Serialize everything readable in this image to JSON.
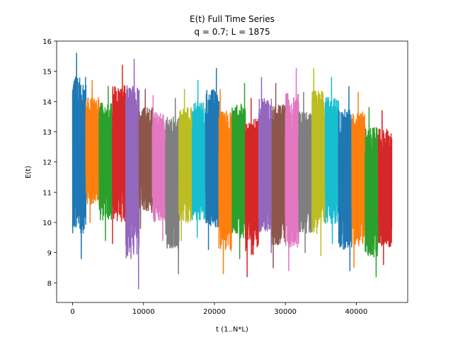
{
  "chart_data": {
    "type": "line",
    "title": "E(t) Full Time Series",
    "subtitle": "q = 0.7; L = 1875",
    "xlabel": "t (1..N*L)",
    "ylabel": "E(t)",
    "xlim": [
      -2250,
      47250
    ],
    "ylim": [
      7.35,
      16.0
    ],
    "xticks": [
      0,
      10000,
      20000,
      30000,
      40000
    ],
    "yticks": [
      8,
      9,
      10,
      11,
      12,
      13,
      14,
      15,
      16
    ],
    "grid": false,
    "legend": "none",
    "segment_length": 1875,
    "colors": [
      "#1f77b4",
      "#ff7f0e",
      "#2ca02c",
      "#d62728",
      "#9467bd",
      "#8c564b",
      "#e377c2",
      "#7f7f7f",
      "#bcbd22",
      "#17becf"
    ],
    "series": [
      {
        "x_start": 0,
        "x_end": 1875,
        "min": 8.8,
        "max": 15.6,
        "mean": 12.4
      },
      {
        "x_start": 1875,
        "x_end": 3750,
        "min": 10.0,
        "max": 14.7,
        "mean": 12.3
      },
      {
        "x_start": 3750,
        "x_end": 5625,
        "min": 9.4,
        "max": 14.5,
        "mean": 12.2
      },
      {
        "x_start": 5625,
        "x_end": 7500,
        "min": 9.3,
        "max": 15.2,
        "mean": 12.4
      },
      {
        "x_start": 7500,
        "x_end": 9375,
        "min": 7.8,
        "max": 15.4,
        "mean": 11.8
      },
      {
        "x_start": 9375,
        "x_end": 11250,
        "min": 9.8,
        "max": 14.4,
        "mean": 12.0
      },
      {
        "x_start": 11250,
        "x_end": 13125,
        "min": 9.4,
        "max": 14.2,
        "mean": 11.9
      },
      {
        "x_start": 13125,
        "x_end": 15000,
        "min": 8.3,
        "max": 14.1,
        "mean": 11.7
      },
      {
        "x_start": 15000,
        "x_end": 16875,
        "min": 9.4,
        "max": 14.4,
        "mean": 11.9
      },
      {
        "x_start": 16875,
        "x_end": 18750,
        "min": 9.5,
        "max": 14.7,
        "mean": 12.0
      },
      {
        "x_start": 18750,
        "x_end": 20625,
        "min": 9.1,
        "max": 15.1,
        "mean": 12.1
      },
      {
        "x_start": 20625,
        "x_end": 22500,
        "min": 8.3,
        "max": 14.4,
        "mean": 11.4
      },
      {
        "x_start": 22500,
        "x_end": 24375,
        "min": 8.8,
        "max": 14.6,
        "mean": 11.7
      },
      {
        "x_start": 24375,
        "x_end": 26250,
        "min": 8.2,
        "max": 14.1,
        "mean": 11.2
      },
      {
        "x_start": 26250,
        "x_end": 28125,
        "min": 9.0,
        "max": 14.8,
        "mean": 11.8
      },
      {
        "x_start": 28125,
        "x_end": 30000,
        "min": 8.5,
        "max": 14.6,
        "mean": 11.6
      },
      {
        "x_start": 30000,
        "x_end": 31875,
        "min": 8.4,
        "max": 15.1,
        "mean": 11.6
      },
      {
        "x_start": 31875,
        "x_end": 33750,
        "min": 9.0,
        "max": 14.3,
        "mean": 11.7
      },
      {
        "x_start": 33750,
        "x_end": 35625,
        "min": 8.9,
        "max": 15.1,
        "mean": 12.0
      },
      {
        "x_start": 35625,
        "x_end": 37500,
        "min": 9.3,
        "max": 14.8,
        "mean": 12.0
      },
      {
        "x_start": 37500,
        "x_end": 39375,
        "min": 8.4,
        "max": 14.5,
        "mean": 11.4
      },
      {
        "x_start": 39375,
        "x_end": 41250,
        "min": 8.5,
        "max": 14.3,
        "mean": 11.6
      },
      {
        "x_start": 41250,
        "x_end": 43125,
        "min": 8.2,
        "max": 13.8,
        "mean": 11.0
      },
      {
        "x_start": 43125,
        "x_end": 45000,
        "min": 8.6,
        "max": 13.7,
        "mean": 11.1
      }
    ]
  }
}
